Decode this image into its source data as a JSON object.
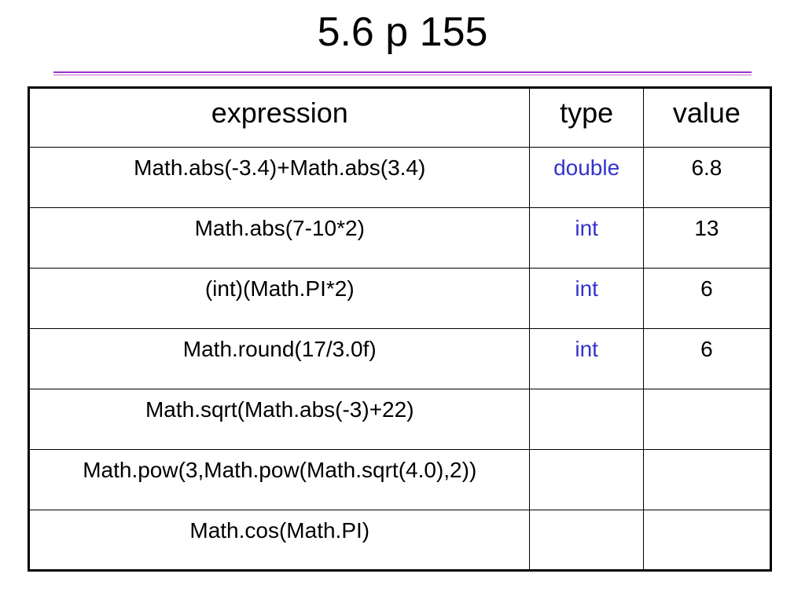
{
  "header": {
    "title": "5.6 p 155"
  },
  "table": {
    "columns": [
      "expression",
      "type",
      "value"
    ],
    "rows": [
      [
        "Math.abs(-3.4)+Math.abs(3.4)",
        "double",
        "6.8"
      ],
      [
        "Math.abs(7-10*2)",
        "int",
        "13"
      ],
      [
        "(int)(Math.PI*2)",
        "int",
        "6"
      ],
      [
        "Math.round(17/3.0f)",
        "int",
        "6"
      ],
      [
        "Math.sqrt(Math.abs(-3)+22)",
        null,
        null
      ],
      [
        "Math.pow(3,Math.pow(Math.sqrt(4.0),2))",
        null,
        null
      ],
      [
        "Math.cos(Math.PI)",
        null,
        null
      ]
    ]
  }
}
